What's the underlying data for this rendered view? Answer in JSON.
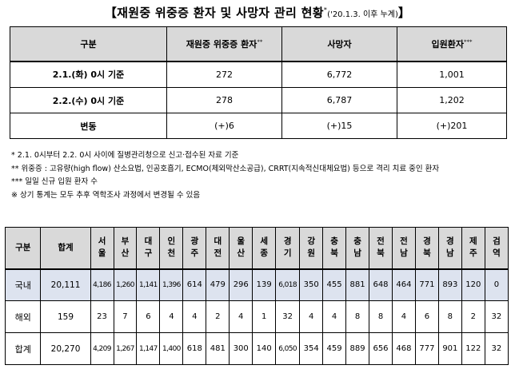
{
  "title": {
    "main": "【재원중 위중증 환자 및 사망자 관리 현황",
    "sup": "*",
    "paren": "('20.1.3. 이후 누계)",
    "close": "】"
  },
  "summary_table": {
    "headers": {
      "category": "구분",
      "critical": "재원중 위중증 환자",
      "critical_sup": "**",
      "deaths": "사망자",
      "admitted": "입원환자",
      "admitted_sup": "***"
    },
    "rows": [
      {
        "label": "2.1.(화) 0시 기준",
        "critical": "272",
        "deaths": "6,772",
        "admitted": "1,001"
      },
      {
        "label": "2.2.(수) 0시 기준",
        "critical": "278",
        "deaths": "6,787",
        "admitted": "1,202"
      },
      {
        "label": "변동",
        "critical": "(+)6",
        "deaths": "(+)15",
        "admitted": "(+)201"
      }
    ]
  },
  "notes": [
    "* 2.1. 0시부터 2.2. 0시 사이에 질병관리청으로 신고·접수된 자료 기준",
    "** 위중증 : 고유량(high flow) 산소요법, 인공호흡기, ECMO(체외막산소공급), CRRT(지속적신대체요법) 등으로 격리 치료 중인 환자",
    "*** 일일 신규 입원 환자 수",
    "※ 상기 통계는 모두 추후 역학조사 과정에서 변경될 수 있음"
  ],
  "region_table": {
    "header_category": "구분",
    "header_total": "합계",
    "regions": [
      [
        "서",
        "울"
      ],
      [
        "부",
        "산"
      ],
      [
        "대",
        "구"
      ],
      [
        "인",
        "천"
      ],
      [
        "광",
        "주"
      ],
      [
        "대",
        "전"
      ],
      [
        "울",
        "산"
      ],
      [
        "세",
        "종"
      ],
      [
        "경",
        "기"
      ],
      [
        "강",
        "원"
      ],
      [
        "충",
        "북"
      ],
      [
        "충",
        "남"
      ],
      [
        "전",
        "북"
      ],
      [
        "전",
        "남"
      ],
      [
        "경",
        "북"
      ],
      [
        "경",
        "남"
      ],
      [
        "제",
        "주"
      ],
      [
        "검",
        "역"
      ]
    ],
    "rows": [
      {
        "label": "국내",
        "total": "20,111",
        "values": [
          "4,186",
          "1,260",
          "1,141",
          "1,396",
          "614",
          "479",
          "296",
          "139",
          "6,018",
          "350",
          "455",
          "881",
          "648",
          "464",
          "771",
          "893",
          "120",
          "0"
        ]
      },
      {
        "label": "해외",
        "total": "159",
        "values": [
          "23",
          "7",
          "6",
          "4",
          "4",
          "2",
          "4",
          "1",
          "32",
          "4",
          "4",
          "8",
          "8",
          "4",
          "6",
          "8",
          "2",
          "32"
        ]
      },
      {
        "label": "합계",
        "total": "20,270",
        "values": [
          "4,209",
          "1,267",
          "1,147",
          "1,400",
          "618",
          "481",
          "300",
          "140",
          "6,050",
          "354",
          "459",
          "889",
          "656",
          "468",
          "777",
          "901",
          "122",
          "32"
        ]
      }
    ]
  }
}
